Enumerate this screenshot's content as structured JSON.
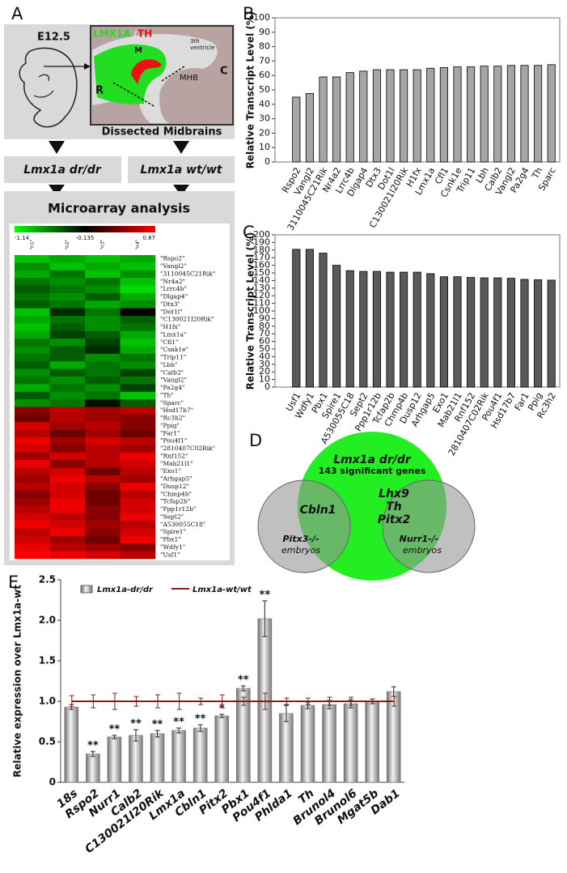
{
  "panel_labels": [
    "A",
    "B",
    "C",
    "D",
    "E"
  ],
  "panel_a": {
    "stage": "E12.5",
    "inset_title_1": "LMX1A",
    "inset_title_sep": "/",
    "inset_title_2": "TH",
    "ventricle_1": "3th",
    "ventricle_2": "ventricle",
    "region_m": "M",
    "region_r": "R",
    "region_mhb": "MHB",
    "region_c": "C",
    "caption": "Dissected Midbrains",
    "group_1": "Lmx1a dr/dr",
    "group_2": "Lmx1a wt/wt",
    "analysis": "Microarray analysis",
    "heatmap": {
      "type": "heatmap",
      "scale": {
        "min": -1.14,
        "mid": -0.135,
        "max": 0.87,
        "min_color": "#00ff00",
        "mid_color": "#000000",
        "max_color": "#ff0000"
      },
      "columns": [
        "\"n1\"",
        "\"n2\"",
        "\"n3\"",
        "\"n4\""
      ],
      "rows": [
        "\"Rspo2\"",
        "\"Vangl2\"",
        "\"3110045C21Rik\"",
        "\"Nr4a2\"",
        "\"Lrrc4b\"",
        "\"Dlgap4\"",
        "\"Dtx3\"",
        "\"Dot1l\"",
        "\"C130021I20Rik\"",
        "\"H1fx\"",
        "\"Lmx1a\"",
        "\"Cfl1\"",
        "\"Csnk1e\"",
        "\"Trip11\"",
        "\"Lbh\"",
        "\"Calb2\"",
        "\"Vangl2\"",
        "\"Pa2g4\"",
        "\"Th\"",
        "\"Sparc\"",
        "\"Hsd17b7\"",
        "\"Rc3h2\"",
        "\"Ppig\"",
        "\"Far1\"",
        "\"Pou4f1\"",
        "\"2810407C02Rik\"",
        "\"Rnf152\"",
        "\"Mab21l1\"",
        "\"Exo1\"",
        "\"Arhgap5\"",
        "\"Dusp12\"",
        "\"Chmp4b\"",
        "\"Tcfap2b\"",
        "\"Ppp1r12b\"",
        "\"Sept2\"",
        "\"A530055C18\"",
        "\"Spire1\"",
        "\"Pbx1\"",
        "\"Wdfy1\"",
        "\"Usf1\""
      ],
      "values": [
        [
          -0.9,
          -0.8,
          -0.9,
          -0.8
        ],
        [
          -0.7,
          -0.9,
          -0.8,
          -0.9
        ],
        [
          -0.8,
          -0.6,
          -0.9,
          -0.7
        ],
        [
          -0.6,
          -0.7,
          -0.6,
          -0.9
        ],
        [
          -0.5,
          -0.6,
          -0.7,
          -1.0
        ],
        [
          -0.6,
          -0.7,
          -0.5,
          -0.8
        ],
        [
          -0.5,
          -0.6,
          -0.8,
          -0.7
        ],
        [
          -0.9,
          -0.3,
          -0.6,
          -0.1
        ],
        [
          -0.8,
          -0.6,
          -0.7,
          -0.5
        ],
        [
          -0.9,
          -0.5,
          -0.7,
          -0.6
        ],
        [
          -0.8,
          -0.4,
          -0.5,
          -0.8
        ],
        [
          -0.6,
          -0.7,
          -0.4,
          -0.9
        ],
        [
          -0.7,
          -0.5,
          -0.3,
          -0.8
        ],
        [
          -0.6,
          -0.5,
          -0.7,
          -0.6
        ],
        [
          -0.5,
          -0.8,
          -0.6,
          -0.7
        ],
        [
          -0.7,
          -0.5,
          -0.6,
          -0.4
        ],
        [
          -0.6,
          -0.7,
          -0.5,
          -0.6
        ],
        [
          -0.8,
          -0.6,
          -0.7,
          -0.4
        ],
        [
          -0.5,
          -0.7,
          -0.6,
          -0.9
        ],
        [
          -0.7,
          -0.6,
          -0.2,
          -0.5
        ],
        [
          0.4,
          0.6,
          0.5,
          0.6
        ],
        [
          0.3,
          0.6,
          0.5,
          0.4
        ],
        [
          0.7,
          0.5,
          0.6,
          0.4
        ],
        [
          0.6,
          0.3,
          0.5,
          0.3
        ],
        [
          0.8,
          0.5,
          0.7,
          0.6
        ],
        [
          0.7,
          0.4,
          0.6,
          0.5
        ],
        [
          0.5,
          0.7,
          0.6,
          0.8
        ],
        [
          0.8,
          0.4,
          0.6,
          0.7
        ],
        [
          0.6,
          0.7,
          0.3,
          0.6
        ],
        [
          0.5,
          0.8,
          0.6,
          0.5
        ],
        [
          0.6,
          0.7,
          0.4,
          0.8
        ],
        [
          0.4,
          0.7,
          0.3,
          0.6
        ],
        [
          0.5,
          0.8,
          0.3,
          0.7
        ],
        [
          0.6,
          0.8,
          0.4,
          0.7
        ],
        [
          0.7,
          0.6,
          0.4,
          0.8
        ],
        [
          0.8,
          0.7,
          0.5,
          0.6
        ],
        [
          0.6,
          0.8,
          0.4,
          0.7
        ],
        [
          0.7,
          0.5,
          0.3,
          0.8
        ],
        [
          0.8,
          0.6,
          0.5,
          0.4
        ],
        [
          0.87,
          0.8,
          0.7,
          0.6
        ]
      ]
    }
  },
  "chart_data": [
    {
      "type": "bar",
      "ylabel": "Relative Transcript Level (%)",
      "categories": [
        "Rspo2",
        "Vangl2",
        "3110045C21Rik",
        "Nr4a2",
        "Lrrc4b",
        "Dlgap4",
        "Dtx3",
        "Dot1l",
        "C130021I20Rik",
        "H1fx",
        "Lmx1a",
        "Cfl1",
        "Csnk1e",
        "Trip11",
        "Lbh",
        "Calb2",
        "Vangl2",
        "Pa2g4",
        "Th",
        "Sparc"
      ],
      "values": [
        45,
        47.5,
        59,
        59,
        62,
        63,
        64,
        64,
        64,
        64,
        65,
        65.5,
        66,
        66,
        66.5,
        66.5,
        67,
        67,
        67,
        67.5
      ],
      "color": "#a6a6a6",
      "ylim": [
        0,
        100
      ],
      "yticks": [
        0,
        10,
        20,
        30,
        40,
        50,
        60,
        70,
        80,
        90,
        100
      ]
    },
    {
      "type": "bar",
      "ylabel": "Relative Transcript Level (%)",
      "categories": [
        "Usf1",
        "Wdfy1",
        "Pbx1",
        "Spire1",
        "A530055C18",
        "Sept2",
        "Ppp1r12b",
        "Tcfap2b",
        "Chmp4b",
        "Dusp12",
        "Arhgap5",
        "Exo1",
        "Mab21l1",
        "Rnf152",
        "2810407C02Rik",
        "Pou4f1",
        "Hsd17b7",
        "Far1",
        "Ppig",
        "Rc3h2"
      ],
      "values": [
        181,
        181,
        176,
        160,
        153,
        152,
        152,
        151,
        151,
        151,
        149,
        145,
        145,
        144,
        143.5,
        143.5,
        143,
        141.5,
        141,
        140.5
      ],
      "color": "#5a5a5a",
      "ylim": [
        0,
        200
      ],
      "yticks": [
        0,
        10,
        20,
        30,
        40,
        50,
        60,
        70,
        80,
        90,
        100,
        110,
        120,
        130,
        140,
        150,
        160,
        170,
        180,
        190,
        200
      ]
    },
    {
      "type": "bar",
      "ylabel": "Relative expression over Lmx1a-wt",
      "categories": [
        "18s",
        "Rspo2",
        "Nurr1",
        "Calb2",
        "C130021I20Rik",
        "Lmx1a",
        "Cbln1",
        "Pitx2",
        "Pbx1",
        "Pou4f1",
        "Phlda1",
        "Th",
        "Brunol4",
        "Brunol6",
        "Mgat5b",
        "Dab1"
      ],
      "series": [
        {
          "name": "Lmx1a-dr/dr",
          "color": "#8c8c8c",
          "kind": "bar",
          "values": [
            0.93,
            0.35,
            0.56,
            0.58,
            0.6,
            0.64,
            0.67,
            0.82,
            1.16,
            2.02,
            0.85,
            0.95,
            0.96,
            0.97,
            1.0,
            1.12
          ],
          "errors": [
            0.03,
            0.03,
            0.02,
            0.07,
            0.04,
            0.03,
            0.04,
            0.02,
            0.03,
            0.22,
            0.1,
            0.04,
            0.05,
            0.05,
            0.03,
            0.06
          ],
          "annotations": [
            null,
            "**",
            "**",
            "**",
            "**",
            "**",
            "**",
            "*",
            "**",
            "**",
            null,
            null,
            null,
            null,
            null,
            null
          ]
        },
        {
          "name": "Lmx1a-wt/wt",
          "color": "#8b1a1a",
          "kind": "line",
          "values": [
            1.0,
            1.0,
            1.0,
            1.0,
            1.0,
            1.0,
            1.0,
            1.0,
            1.0,
            1.0,
            1.0,
            1.0,
            1.0,
            1.0,
            1.0,
            1.0
          ],
          "errors": [
            0.07,
            0.08,
            0.1,
            0.06,
            0.08,
            0.1,
            0.04,
            0.08,
            0.05,
            0.1,
            0.04,
            0.04,
            0.05,
            0.05,
            0.03,
            0.06
          ]
        }
      ],
      "ylim": [
        0,
        2.5
      ],
      "yticks": [
        0,
        0.5,
        {
          "value": 1,
          "label": "1.0"
        },
        1.5,
        {
          "value": 2,
          "label": "2.0"
        },
        2.5
      ]
    }
  ],
  "panel_d": {
    "set_main": "Lmx1a dr/dr",
    "set_main_count": "143 significant genes",
    "overlap_left": "Cbln1",
    "overlap_right": [
      "Lhx9",
      "Th",
      "Pitx2"
    ],
    "set_left": "Pitx3-/-",
    "set_left_note": "embryos",
    "set_right": "Nurr1-/-",
    "set_right_note": "embryos"
  }
}
